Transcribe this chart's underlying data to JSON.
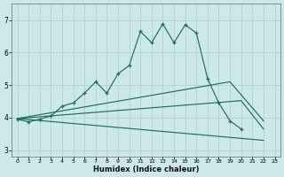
{
  "xlabel": "Humidex (Indice chaleur)",
  "bg_color": "#cce8e8",
  "grid_color": "#b8d4d4",
  "line_color": "#1a7060",
  "xlim": [
    -0.5,
    23.5
  ],
  "ylim": [
    2.8,
    7.5
  ],
  "xticks": [
    0,
    1,
    2,
    3,
    4,
    5,
    6,
    7,
    8,
    9,
    10,
    11,
    12,
    13,
    14,
    15,
    16,
    17,
    18,
    19,
    20,
    21,
    22,
    23
  ],
  "yticks": [
    3,
    4,
    5,
    6,
    7
  ],
  "series_main": {
    "x": [
      0,
      1,
      2,
      3,
      4,
      5,
      6,
      7,
      8,
      9,
      10,
      11,
      12,
      13,
      14,
      15,
      16,
      17,
      18,
      19,
      20
    ],
    "y": [
      3.95,
      3.87,
      3.95,
      4.05,
      4.35,
      4.45,
      4.75,
      5.1,
      4.75,
      5.35,
      5.6,
      6.65,
      6.3,
      6.88,
      6.3,
      6.85,
      6.6,
      5.2,
      4.45,
      3.9,
      3.65
    ]
  },
  "series_fan": [
    {
      "x": [
        0,
        19,
        22
      ],
      "y": [
        3.97,
        5.1,
        3.9
      ]
    },
    {
      "x": [
        0,
        20,
        22
      ],
      "y": [
        3.97,
        4.52,
        3.65
      ]
    },
    {
      "x": [
        0,
        22
      ],
      "y": [
        3.97,
        3.3
      ]
    }
  ]
}
